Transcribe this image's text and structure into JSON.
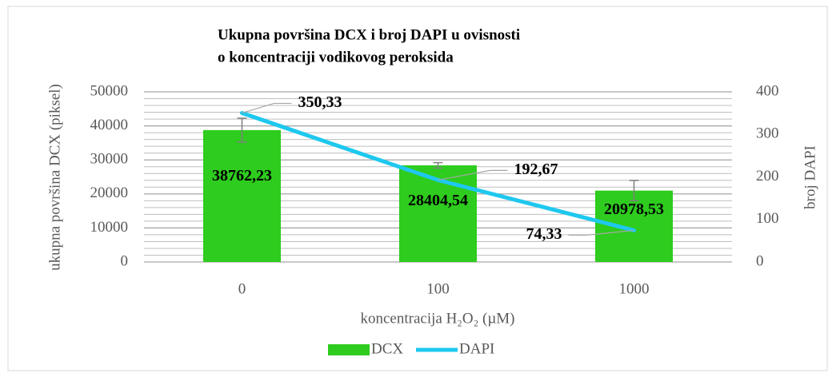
{
  "chart_data": {
    "type": "bar_line",
    "title": [
      "Ukupna površina DCX i broj DAPI u ovisnosti",
      "o koncentraciji vodikovog peroksida"
    ],
    "x_label": "koncentracija H₂O₂  (µM)",
    "y_label": "ukupna površina DCX (piksel)",
    "y2_label": "broj DAPI",
    "categories": [
      "0",
      "100",
      "1000"
    ],
    "series": [
      {
        "name": "DCX",
        "type": "bar",
        "color": "#2ecc1e",
        "values": [
          38762.23,
          28404.54,
          20978.53
        ],
        "value_labels": [
          "38762,23",
          "28404,54",
          "20978,53"
        ],
        "errors": [
          3500,
          800,
          3000
        ]
      },
      {
        "name": "DAPI",
        "type": "line",
        "axis": "y2",
        "color": "#1ec8ef",
        "values": [
          350.33,
          192.67,
          74.33
        ],
        "value_labels": [
          "350,33",
          "192,67",
          "74,33"
        ]
      }
    ],
    "ylim": [
      0,
      50000
    ],
    "yticks": [
      0,
      10000,
      20000,
      30000,
      40000,
      50000
    ],
    "y2lim": [
      0,
      400
    ],
    "y2ticks": [
      0,
      100,
      200,
      300,
      400
    ],
    "grid": true,
    "minor_grid_step": 2000,
    "legend": "bottom"
  }
}
